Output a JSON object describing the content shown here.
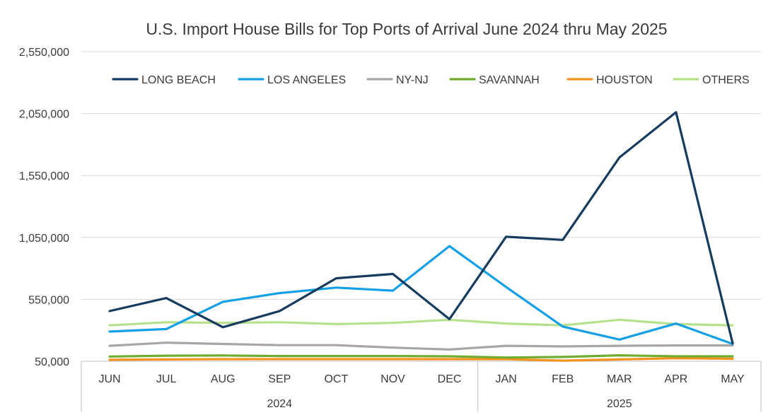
{
  "chart_data": {
    "type": "line",
    "title": "U.S. Import House Bills for Top Ports of Arrival June 2024 thru May 2025",
    "xlabel": "",
    "ylabel": "",
    "ylim": [
      50000,
      2550000
    ],
    "yticks": [
      50000,
      550000,
      1050000,
      1550000,
      2050000,
      2550000
    ],
    "ytick_labels": [
      "50,000",
      "550,000",
      "1,050,000",
      "1,550,000",
      "2,050,000",
      "2,550,000"
    ],
    "categories": [
      "JUN",
      "JUL",
      "AUG",
      "SEP",
      "OCT",
      "NOV",
      "DEC",
      "JAN",
      "FEB",
      "MAR",
      "APR",
      "MAY"
    ],
    "groups": [
      {
        "label": "2024",
        "count": 7
      },
      {
        "label": "2025",
        "count": 5
      }
    ],
    "legend_position": "top",
    "grid": true,
    "series": [
      {
        "name": "LONG BEACH",
        "color": "#163b5e",
        "values": [
          455000,
          560000,
          325000,
          455000,
          720000,
          755000,
          390000,
          1055000,
          1030000,
          1695000,
          2060000,
          195000
        ]
      },
      {
        "name": "LOS ANGELES",
        "color": "#15a0e6",
        "values": [
          290000,
          310000,
          530000,
          600000,
          645000,
          620000,
          980000,
          650000,
          330000,
          225000,
          355000,
          190000
        ]
      },
      {
        "name": "NY-NJ",
        "color": "#a6a6a6",
        "values": [
          175000,
          200000,
          190000,
          180000,
          180000,
          160000,
          145000,
          175000,
          170000,
          175000,
          178000,
          178000
        ]
      },
      {
        "name": "SAVANNAH",
        "color": "#70ad2e",
        "values": [
          88000,
          95000,
          97000,
          92000,
          92000,
          92000,
          90000,
          80000,
          85000,
          98000,
          90000,
          90000
        ]
      },
      {
        "name": "HOUSTON",
        "color": "#f5921e",
        "values": [
          62000,
          65000,
          67000,
          67000,
          67000,
          67000,
          67000,
          67000,
          55000,
          65000,
          75000,
          70000
        ]
      },
      {
        "name": "OTHERS",
        "color": "#b5e08c",
        "values": [
          340000,
          365000,
          360000,
          365000,
          350000,
          360000,
          385000,
          355000,
          340000,
          385000,
          350000,
          340000
        ]
      }
    ]
  }
}
